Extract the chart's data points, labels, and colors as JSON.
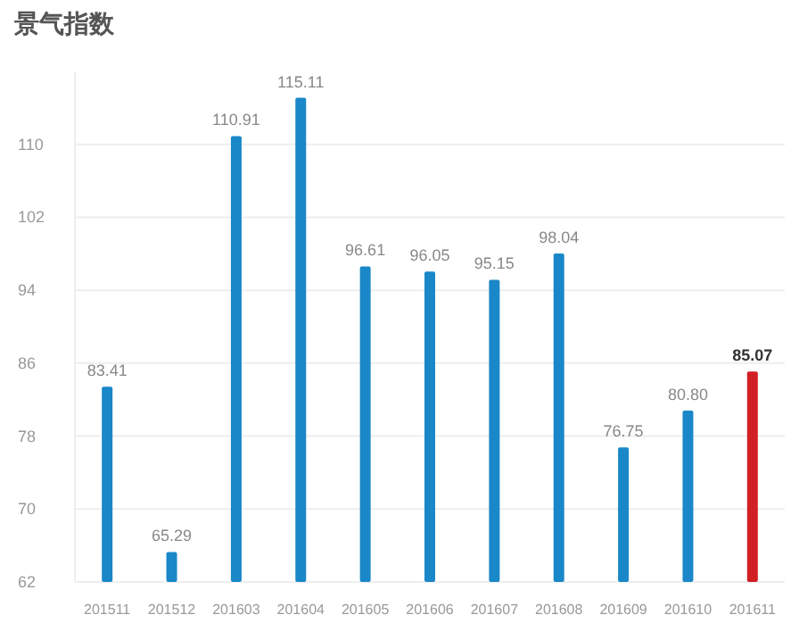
{
  "chart_data": {
    "type": "bar",
    "title": "景气指数",
    "categories": [
      "201511",
      "201512",
      "201603",
      "201604",
      "201605",
      "201606",
      "201607",
      "201608",
      "201609",
      "201610",
      "201611"
    ],
    "values": [
      83.41,
      65.29,
      110.91,
      115.11,
      96.61,
      96.05,
      95.15,
      98.04,
      76.75,
      80.8,
      85.07
    ],
    "value_labels": [
      "83.41",
      "65.29",
      "110.91",
      "115.11",
      "96.61",
      "96.05",
      "95.15",
      "98.04",
      "76.75",
      "80.80",
      "85.07"
    ],
    "colors": [
      "#1a87c8",
      "#1a87c8",
      "#1a87c8",
      "#1a87c8",
      "#1a87c8",
      "#1a87c8",
      "#1a87c8",
      "#1a87c8",
      "#1a87c8",
      "#1a87c8",
      "#d21f24"
    ],
    "ylim": [
      62,
      118
    ],
    "yticks": [
      62,
      70,
      78,
      86,
      94,
      102,
      110
    ],
    "grid": "y"
  }
}
